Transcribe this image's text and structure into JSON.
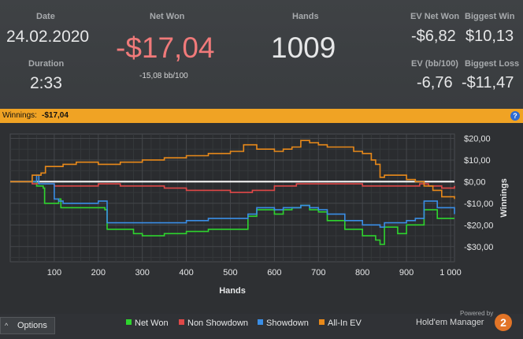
{
  "stats": {
    "date_label": "Date",
    "date_value": "24.02.2020",
    "duration_label": "Duration",
    "duration_value": "2:33",
    "netwon_label": "Net Won",
    "netwon_value": "-$17,04",
    "netwon_sub": "-15,08 bb/100",
    "hands_label": "Hands",
    "hands_value": "1009",
    "evnet_label": "EV Net Won",
    "evnet_value": "-$6,82",
    "evbb_label": "EV (bb/100)",
    "evbb_value": "-6,76",
    "bigwin_label": "Biggest Win",
    "bigwin_value": "$10,13",
    "bigloss_label": "Biggest Loss",
    "bigloss_value": "-$11,47"
  },
  "bar": {
    "label": "Winnings:",
    "value": "-$17,04",
    "help": "?"
  },
  "footer": {
    "options_label": "Options",
    "powered_by": "Powered by",
    "brand": "Hold'em Manager",
    "brand_badge": "2"
  },
  "colors": {
    "net_won": "#2ed42e",
    "non_showdown": "#e04848",
    "showdown": "#3a8ee6",
    "all_in_ev": "#e8891a",
    "netwon_value": "#f07a7a",
    "bar": "#f0a324"
  },
  "chart_data": {
    "type": "line",
    "xlabel": "Hands",
    "ylabel": "Winnings",
    "xlim": [
      0,
      1009
    ],
    "ylim": [
      -37,
      22
    ],
    "x_ticks": [
      100,
      200,
      300,
      400,
      500,
      600,
      700,
      800,
      900,
      1000
    ],
    "x_tick_labels": [
      "100",
      "200",
      "300",
      "400",
      "500",
      "600",
      "700",
      "800",
      "900",
      "1 000"
    ],
    "y_ticks": [
      20,
      10,
      0,
      -10,
      -20,
      -30
    ],
    "y_tick_labels": [
      "$20,00",
      "$10,00",
      "$0,00",
      "-$10,00",
      "-$20,00",
      "-$30,00"
    ],
    "legend_position": "bottom",
    "series": [
      {
        "name": "Net Won",
        "color": "#2ed42e",
        "x": [
          0,
          60,
          75,
          78,
          100,
          110,
          115,
          200,
          215,
          220,
          260,
          280,
          300,
          350,
          400,
          450,
          500,
          540,
          560,
          600,
          620,
          640,
          660,
          680,
          700,
          720,
          760,
          800,
          830,
          840,
          850,
          880,
          900,
          920,
          930,
          940,
          970,
          1009
        ],
        "y": [
          0,
          -2,
          -3,
          -10,
          -10,
          -8,
          -12,
          -12,
          -13,
          -22,
          -22,
          -24,
          -25,
          -24,
          -23,
          -22,
          -22,
          -16,
          -13,
          -15,
          -13,
          -12,
          -11,
          -13,
          -14,
          -18,
          -22,
          -25,
          -27,
          -29,
          -21,
          -24,
          -20,
          -20,
          -20,
          -13,
          -17,
          -17
        ]
      },
      {
        "name": "Non Showdown",
        "color": "#e04848",
        "x": [
          0,
          50,
          100,
          150,
          200,
          250,
          300,
          350,
          400,
          450,
          500,
          550,
          600,
          650,
          700,
          750,
          800,
          850,
          900,
          930,
          950,
          980,
          1009
        ],
        "y": [
          0,
          -1,
          -2,
          -2,
          -1,
          -2,
          -2,
          -3,
          -4,
          -4,
          -5,
          -4,
          -2,
          -1,
          -1,
          -1,
          -2,
          -2,
          -2,
          -1,
          -2,
          -3,
          -2
        ]
      },
      {
        "name": "Showdown",
        "color": "#3a8ee6",
        "x": [
          0,
          60,
          65,
          100,
          110,
          120,
          200,
          215,
          220,
          260,
          300,
          350,
          400,
          450,
          500,
          540,
          560,
          600,
          620,
          640,
          660,
          680,
          700,
          720,
          760,
          800,
          840,
          850,
          900,
          920,
          930,
          940,
          970,
          1009
        ],
        "y": [
          0,
          3,
          -1,
          -8,
          -9,
          -10,
          -9,
          -9,
          -19,
          -19,
          -19,
          -19,
          -18,
          -17,
          -17,
          -15,
          -12,
          -13,
          -12,
          -12,
          -11,
          -12,
          -13,
          -15,
          -18,
          -20,
          -21,
          -19,
          -18,
          -17,
          -17,
          -9,
          -12,
          -15
        ]
      },
      {
        "name": "All-In EV",
        "color": "#e8891a",
        "x": [
          0,
          50,
          70,
          80,
          100,
          120,
          150,
          200,
          250,
          300,
          350,
          400,
          450,
          500,
          530,
          560,
          600,
          620,
          640,
          660,
          680,
          700,
          720,
          760,
          780,
          800,
          820,
          830,
          840,
          850,
          900,
          920,
          940,
          960,
          980,
          1009
        ],
        "y": [
          0,
          3,
          4,
          7,
          7,
          8,
          9,
          8,
          9,
          10,
          11,
          12,
          13,
          14,
          17,
          15,
          14,
          15,
          16,
          19,
          18,
          17,
          16,
          16,
          14,
          13,
          10,
          8,
          2,
          3,
          1,
          0,
          -2,
          -4,
          -7,
          -8
        ]
      }
    ]
  }
}
